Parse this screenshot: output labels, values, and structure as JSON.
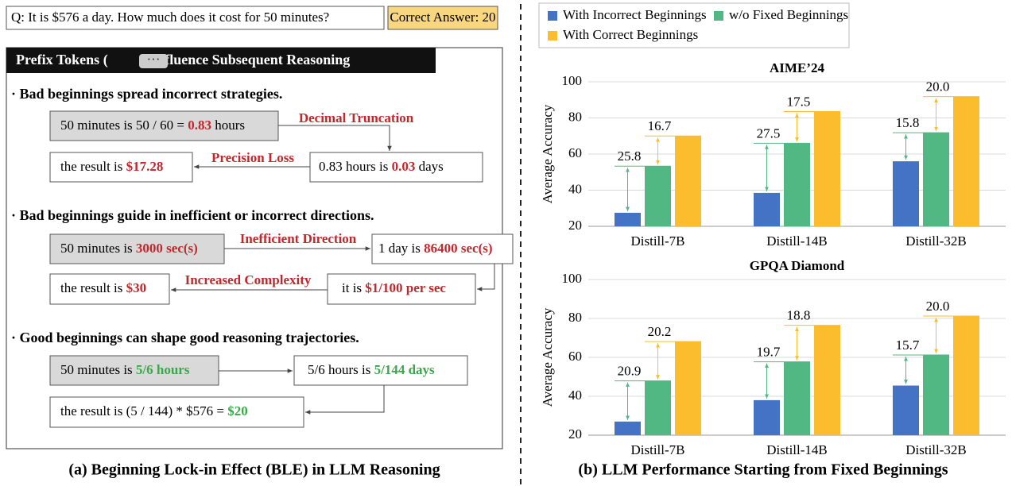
{
  "left": {
    "question": "Q: It is $576 a day. How much does it cost for 50 minutes?",
    "answer": "Correct Answer: 20",
    "header": {
      "before": "Prefix Tokens (",
      "after": ") Influence Subsequent Reasoning"
    },
    "sections": [
      {
        "heading": "· Bad beginnings spread incorrect strategies.",
        "steps": [
          {
            "text": "50 minutes is 50 / 60 = ",
            "em": "0.83",
            "tail": " hours"
          },
          {
            "text": "0.83 hours is ",
            "em": "0.03",
            "tail": " days"
          },
          {
            "text": "the result is ",
            "em": "$17.28"
          }
        ],
        "labels": [
          "Decimal Truncation",
          "Precision Loss"
        ]
      },
      {
        "heading": "· Bad beginnings guide in inefficient or incorrect directions.",
        "steps": [
          {
            "text": "50 minutes is ",
            "em": "3000 sec(s)"
          },
          {
            "text": "1 day is ",
            "em": "86400 sec(s)"
          },
          {
            "text": "it is ",
            "em": "$1/100 per sec"
          },
          {
            "text": "the result is ",
            "em": "$30"
          }
        ],
        "labels": [
          "Inefficient Direction",
          "Increased Complexity"
        ]
      },
      {
        "heading": "· Good beginnings can shape good reasoning trajectories.",
        "steps": [
          {
            "text": "50 minutes is ",
            "em": "5/6 hours"
          },
          {
            "text": "5/6 hours is ",
            "em": "5/144 days"
          },
          {
            "text": "the result is (5 / 144) * $576 = ",
            "em": "$20"
          }
        ]
      }
    ],
    "caption": "(a) Beginning Lock-in Effect (BLE) in LLM Reasoning"
  },
  "caption_right": "(b) LLM Performance Starting from Fixed Beginnings",
  "chart_data": [
    {
      "type": "bar",
      "title": "AIME’24",
      "ylabel": "Average Accuracy",
      "categories": [
        "Distill-7B",
        "Distill-14B",
        "Distill-32B"
      ],
      "series": [
        {
          "name": "With Incorrect Beginnings",
          "color": "#4472c4",
          "values": [
            27.5,
            38.5,
            56
          ]
        },
        {
          "name": "w/o Fixed Beginnings",
          "color": "#52b883",
          "values": [
            53.3,
            66,
            71.8
          ]
        },
        {
          "name": "With Correct Beginnings",
          "color": "#fbbd2e",
          "values": [
            70,
            83.5,
            91.8
          ]
        }
      ],
      "gains": [
        [
          25.8,
          16.7
        ],
        [
          27.5,
          17.5
        ],
        [
          15.8,
          {
            "value": 20,
            "label": "20.0"
          }
        ]
      ],
      "ylim": [
        20,
        100
      ],
      "yticks": [
        20,
        40,
        60,
        80,
        100
      ],
      "grid": true
    },
    {
      "type": "bar",
      "title": "GPQA Diamond",
      "ylabel": "Average Accuracy",
      "categories": [
        "Distill-7B",
        "Distill-14B",
        "Distill-32B"
      ],
      "series": [
        {
          "color": "#4472c4",
          "values": [
            27,
            38,
            45.5
          ]
        },
        {
          "color": "#52b883",
          "values": [
            47.9,
            57.7,
            61.2
          ]
        },
        {
          "color": "#fbbd2e",
          "values": [
            68.1,
            76.5,
            81.2
          ]
        }
      ],
      "gains": [
        [
          20.9,
          20.2
        ],
        [
          19.7,
          18.8
        ],
        [
          15.7,
          {
            "value": 20,
            "label": "20.0"
          }
        ]
      ],
      "ylim": [
        20,
        100
      ],
      "yticks": [
        20,
        40,
        60,
        80,
        100
      ],
      "grid": true
    }
  ]
}
